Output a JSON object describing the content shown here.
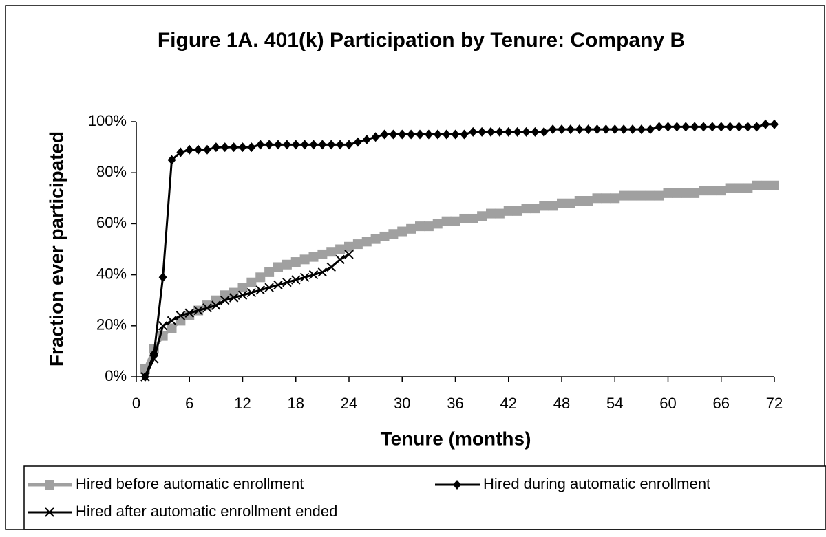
{
  "chart_data": {
    "type": "line",
    "title": "Figure 1A. 401(k) Participation by Tenure: Company B",
    "x_label": "Tenure (months)",
    "y_label": "Fraction ever participated",
    "xlim": [
      0,
      72
    ],
    "xticks": [
      0,
      6,
      12,
      18,
      24,
      30,
      36,
      42,
      48,
      54,
      60,
      66,
      72
    ],
    "ylim": [
      0,
      100
    ],
    "yticks": [
      {
        "value": 0,
        "label": "0%"
      },
      {
        "value": 20,
        "label": "20%"
      },
      {
        "value": 40,
        "label": "40%"
      },
      {
        "value": 60,
        "label": "60%"
      },
      {
        "value": 80,
        "label": "80%"
      },
      {
        "value": 100,
        "label": "100%"
      }
    ],
    "legend": "bottom",
    "series": [
      {
        "name": "Hired before automatic enrollment",
        "color": "#a0a0a0",
        "marker": "square",
        "x": [
          1,
          2,
          3,
          4,
          5,
          6,
          7,
          8,
          9,
          10,
          11,
          12,
          13,
          14,
          15,
          16,
          17,
          18,
          19,
          20,
          21,
          22,
          23,
          24,
          25,
          26,
          27,
          28,
          29,
          30,
          31,
          32,
          33,
          34,
          35,
          36,
          37,
          38,
          39,
          40,
          41,
          42,
          43,
          44,
          45,
          46,
          47,
          48,
          49,
          50,
          51,
          52,
          53,
          54,
          55,
          56,
          57,
          58,
          59,
          60,
          61,
          62,
          63,
          64,
          65,
          66,
          67,
          68,
          69,
          70,
          71,
          72
        ],
        "values": [
          3,
          11,
          16,
          19,
          22,
          24,
          26,
          28,
          30,
          32,
          33,
          35,
          37,
          39,
          41,
          43,
          44,
          45,
          46,
          47,
          48,
          49,
          50,
          51,
          52,
          53,
          54,
          55,
          56,
          57,
          58,
          59,
          59,
          60,
          61,
          61,
          62,
          62,
          63,
          64,
          64,
          65,
          65,
          66,
          66,
          67,
          67,
          68,
          68,
          69,
          69,
          70,
          70,
          70,
          71,
          71,
          71,
          71,
          71,
          72,
          72,
          72,
          72,
          73,
          73,
          73,
          74,
          74,
          74,
          75,
          75,
          75
        ]
      },
      {
        "name": "Hired during automatic enrollment",
        "color": "#000000",
        "marker": "diamond",
        "x": [
          1,
          2,
          3,
          4,
          5,
          6,
          7,
          8,
          9,
          10,
          11,
          12,
          13,
          14,
          15,
          16,
          17,
          18,
          19,
          20,
          21,
          22,
          23,
          24,
          25,
          26,
          27,
          28,
          29,
          30,
          31,
          32,
          33,
          34,
          35,
          36,
          37,
          38,
          39,
          40,
          41,
          42,
          43,
          44,
          45,
          46,
          47,
          48,
          49,
          50,
          51,
          52,
          53,
          54,
          55,
          56,
          57,
          58,
          59,
          60,
          61,
          62,
          63,
          64,
          65,
          66,
          67,
          68,
          69,
          70,
          71,
          72
        ],
        "values": [
          0,
          9,
          39,
          85,
          88,
          89,
          89,
          89,
          90,
          90,
          90,
          90,
          90,
          91,
          91,
          91,
          91,
          91,
          91,
          91,
          91,
          91,
          91,
          91,
          92,
          93,
          94,
          95,
          95,
          95,
          95,
          95,
          95,
          95,
          95,
          95,
          95,
          96,
          96,
          96,
          96,
          96,
          96,
          96,
          96,
          96,
          97,
          97,
          97,
          97,
          97,
          97,
          97,
          97,
          97,
          97,
          97,
          97,
          98,
          98,
          98,
          98,
          98,
          98,
          98,
          98,
          98,
          98,
          98,
          98,
          99,
          99
        ]
      },
      {
        "name": "Hired after automatic enrollment ended",
        "color": "#000000",
        "marker": "x",
        "x": [
          1,
          2,
          3,
          4,
          5,
          6,
          7,
          8,
          9,
          10,
          11,
          12,
          13,
          14,
          15,
          16,
          17,
          18,
          19,
          20,
          21,
          22,
          23,
          24
        ],
        "values": [
          0,
          7,
          20,
          22,
          24,
          25,
          26,
          27,
          28,
          30,
          31,
          32,
          33,
          34,
          35,
          36,
          37,
          38,
          39,
          40,
          41,
          43,
          46,
          48
        ]
      }
    ]
  }
}
